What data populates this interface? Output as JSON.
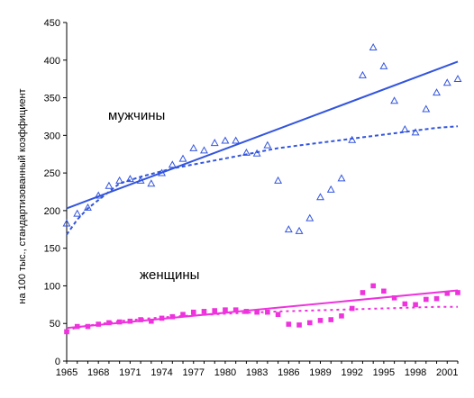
{
  "chart_data": {
    "type": "scatter",
    "title": "",
    "xlabel": "",
    "ylabel": "на 100 тыс., стандартизованный коэффициент",
    "xlim": [
      1965,
      2002
    ],
    "ylim": [
      0,
      450
    ],
    "grid": false,
    "legend": "none",
    "x_tick_labels": [
      "1965",
      "1968",
      "1971",
      "1974",
      "1977",
      "1980",
      "1983",
      "1986",
      "1989",
      "1992",
      "1995",
      "1998",
      "2001"
    ],
    "y_tick_labels": [
      "0",
      "50",
      "100",
      "150",
      "200",
      "250",
      "300",
      "350",
      "400",
      "450"
    ],
    "series": [
      {
        "name": "мужчины",
        "marker": "triangle",
        "color": "#3355dd",
        "points": [
          [
            1965,
            183
          ],
          [
            1966,
            196
          ],
          [
            1967,
            204
          ],
          [
            1968,
            220
          ],
          [
            1969,
            233
          ],
          [
            1970,
            240
          ],
          [
            1971,
            242
          ],
          [
            1972,
            240
          ],
          [
            1973,
            236
          ],
          [
            1974,
            250
          ],
          [
            1975,
            261
          ],
          [
            1976,
            269
          ],
          [
            1977,
            283
          ],
          [
            1978,
            280
          ],
          [
            1979,
            290
          ],
          [
            1980,
            293
          ],
          [
            1981,
            293
          ],
          [
            1982,
            277
          ],
          [
            1983,
            276
          ],
          [
            1984,
            287
          ],
          [
            1985,
            240
          ],
          [
            1986,
            175
          ],
          [
            1987,
            173
          ],
          [
            1988,
            190
          ],
          [
            1989,
            218
          ],
          [
            1990,
            228
          ],
          [
            1991,
            243
          ],
          [
            1992,
            294
          ],
          [
            1993,
            380
          ],
          [
            1994,
            417
          ],
          [
            1995,
            392
          ],
          [
            1996,
            346
          ],
          [
            1997,
            308
          ],
          [
            1998,
            304
          ],
          [
            1999,
            335
          ],
          [
            2000,
            357
          ],
          [
            2001,
            370
          ],
          [
            2002,
            375
          ]
        ],
        "linear_trend": [
          [
            1965,
            203
          ],
          [
            2002,
            398
          ]
        ],
        "log_trend": [
          [
            1965,
            168
          ],
          [
            1966,
            188
          ],
          [
            1967,
            203
          ],
          [
            1968,
            214
          ],
          [
            1969,
            225
          ],
          [
            1970,
            236
          ],
          [
            1972,
            245
          ],
          [
            1975,
            256
          ],
          [
            1978,
            264
          ],
          [
            1981,
            272
          ],
          [
            1985,
            283
          ],
          [
            1990,
            292
          ],
          [
            1995,
            301
          ],
          [
            2000,
            310
          ],
          [
            2002,
            312
          ]
        ]
      },
      {
        "name": "женщины",
        "marker": "square",
        "color": "#ee33dd",
        "points": [
          [
            1965,
            39
          ],
          [
            1966,
            46
          ],
          [
            1967,
            46
          ],
          [
            1968,
            49
          ],
          [
            1969,
            51
          ],
          [
            1970,
            52
          ],
          [
            1971,
            53
          ],
          [
            1972,
            55
          ],
          [
            1973,
            53
          ],
          [
            1974,
            57
          ],
          [
            1975,
            59
          ],
          [
            1976,
            62
          ],
          [
            1977,
            65
          ],
          [
            1978,
            66
          ],
          [
            1979,
            67
          ],
          [
            1980,
            68
          ],
          [
            1981,
            68
          ],
          [
            1982,
            66
          ],
          [
            1983,
            65
          ],
          [
            1984,
            65
          ],
          [
            1985,
            62
          ],
          [
            1986,
            49
          ],
          [
            1987,
            48
          ],
          [
            1988,
            51
          ],
          [
            1989,
            54
          ],
          [
            1990,
            55
          ],
          [
            1991,
            60
          ],
          [
            1992,
            70
          ],
          [
            1993,
            91
          ],
          [
            1994,
            100
          ],
          [
            1995,
            93
          ],
          [
            1996,
            84
          ],
          [
            1997,
            76
          ],
          [
            1998,
            75
          ],
          [
            1999,
            82
          ],
          [
            2000,
            83
          ],
          [
            2001,
            90
          ],
          [
            2002,
            91
          ]
        ],
        "linear_trend": [
          [
            1965,
            44
          ],
          [
            2002,
            94
          ]
        ],
        "log_trend": [
          [
            1965,
            40
          ],
          [
            1966,
            45
          ],
          [
            1967,
            47
          ],
          [
            1968,
            49
          ],
          [
            1970,
            53
          ],
          [
            1973,
            57
          ],
          [
            1976,
            60
          ],
          [
            1980,
            63
          ],
          [
            1985,
            66
          ],
          [
            1990,
            68
          ],
          [
            1995,
            70
          ],
          [
            2000,
            72
          ],
          [
            2002,
            72
          ]
        ]
      }
    ]
  }
}
